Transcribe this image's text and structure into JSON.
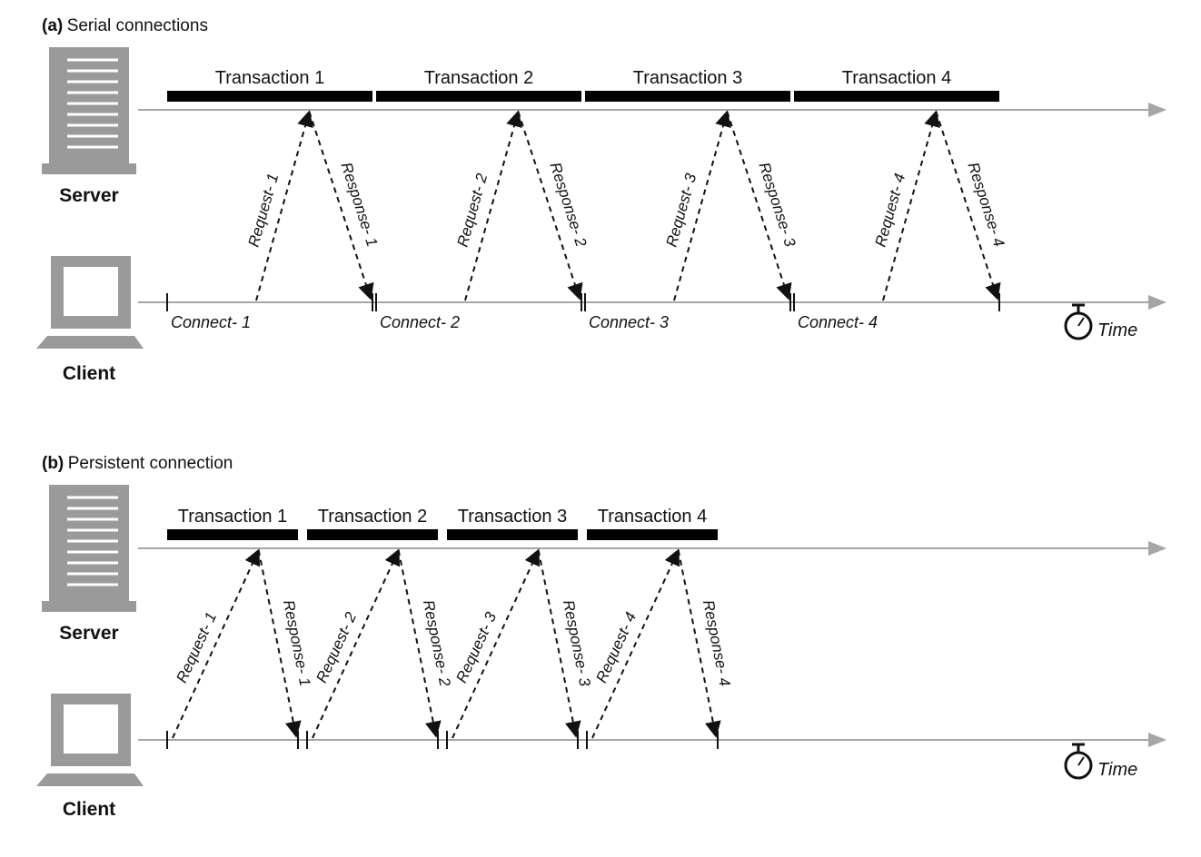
{
  "panels": [
    {
      "id": "a",
      "title_tag": "(a)",
      "title": "Serial connections",
      "server_label": "Server",
      "client_label": "Client",
      "time_label": "Time",
      "transactions": [
        {
          "label": "Transaction 1",
          "request": "Request- 1",
          "response": "Response- 1",
          "connect": "Connect- 1"
        },
        {
          "label": "Transaction 2",
          "request": "Request- 2",
          "response": "Response- 2",
          "connect": "Connect- 2"
        },
        {
          "label": "Transaction 3",
          "request": "Request- 3",
          "response": "Response- 3",
          "connect": "Connect- 3"
        },
        {
          "label": "Transaction 4",
          "request": "Request- 4",
          "response": "Response- 4",
          "connect": "Connect- 4"
        }
      ]
    },
    {
      "id": "b",
      "title_tag": "(b)",
      "title": "Persistent connection",
      "server_label": "Server",
      "client_label": "Client",
      "time_label": "Time",
      "transactions": [
        {
          "label": "Transaction 1",
          "request": "Request- 1",
          "response": "Response- 1"
        },
        {
          "label": "Transaction 2",
          "request": "Request- 2",
          "response": "Response- 2"
        },
        {
          "label": "Transaction 3",
          "request": "Request- 3",
          "response": "Response- 3"
        },
        {
          "label": "Transaction 4",
          "request": "Request- 4",
          "response": "Response- 4"
        }
      ]
    }
  ],
  "colors": {
    "timeline": "#a6a6a6",
    "bar": "#000000",
    "device": "#9a9a9a",
    "text": "#111111"
  },
  "icons": [
    "server-icon",
    "client-computer-icon",
    "stopwatch-icon"
  ]
}
